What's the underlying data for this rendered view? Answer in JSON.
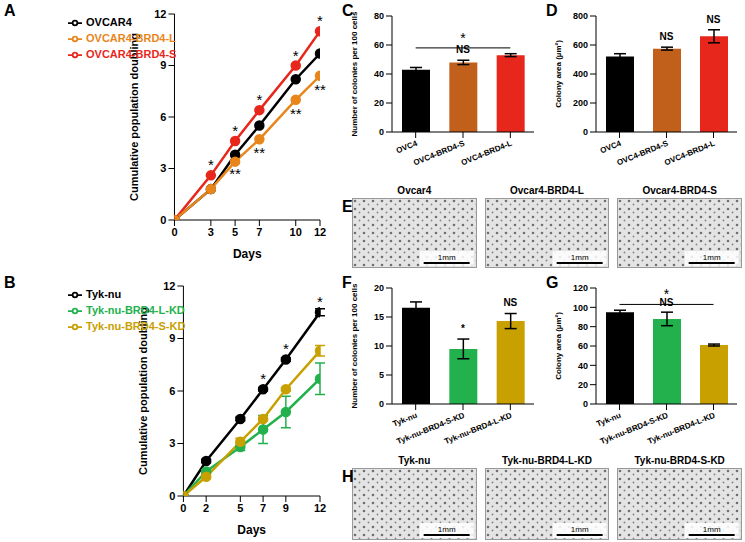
{
  "chart_data": [
    {
      "panel": "A",
      "type": "line",
      "x_label": "Days",
      "y_label": "Cumulative population doubling",
      "x": [
        0,
        3,
        5,
        7,
        10,
        12
      ],
      "xlim": [
        0,
        12
      ],
      "xticks": [
        0,
        3,
        5,
        7,
        10,
        12
      ],
      "ylim": [
        0,
        12
      ],
      "yticks": [
        0,
        3,
        6,
        9,
        12
      ],
      "grid": false,
      "legend": "upper left",
      "marker": "circle",
      "series": [
        {
          "name": "OVCAR4",
          "color": "#000000",
          "values": [
            0,
            1.8,
            3.8,
            5.5,
            8.2,
            9.7
          ]
        },
        {
          "name": "OVCAR4-BRD4-S",
          "color": "#e8271c",
          "values": [
            0,
            2.6,
            4.6,
            6.4,
            9.0,
            11.0
          ]
        },
        {
          "name": "OVCAR4-BRD4-L",
          "color": "#e8861c",
          "values": [
            0,
            1.8,
            3.4,
            4.7,
            7.0,
            8.4
          ]
        }
      ],
      "annotations": [
        {
          "x": 3,
          "y": 3.2,
          "text": "*"
        },
        {
          "x": 5,
          "y": 5.2,
          "text": "*"
        },
        {
          "x": 7,
          "y": 7.0,
          "text": "*"
        },
        {
          "x": 10,
          "y": 9.6,
          "text": "*"
        },
        {
          "x": 12,
          "y": 11.6,
          "text": "*"
        },
        {
          "x": 5,
          "y": 2.7,
          "text": "**"
        },
        {
          "x": 7,
          "y": 3.9,
          "text": "**"
        },
        {
          "x": 10,
          "y": 6.2,
          "text": "**"
        },
        {
          "x": 12,
          "y": 7.6,
          "text": "**"
        }
      ]
    },
    {
      "panel": "B",
      "type": "line",
      "x_label": "Days",
      "y_label": "Cumulative population doubling",
      "x": [
        0,
        2,
        5,
        7,
        9,
        12
      ],
      "xlim": [
        0,
        12
      ],
      "xticks": [
        0,
        2,
        5,
        7,
        9,
        12
      ],
      "ylim": [
        0,
        12
      ],
      "yticks": [
        0,
        3,
        6,
        9,
        12
      ],
      "grid": false,
      "legend": "upper left",
      "marker": "circle",
      "series": [
        {
          "name": "Tyk-nu",
          "color": "#000000",
          "values": [
            0,
            2.0,
            4.4,
            6.1,
            7.8,
            10.5
          ],
          "errors": [
            0,
            0.1,
            0.1,
            0.1,
            0.1,
            0.2
          ]
        },
        {
          "name": "Tyk-nu-BRD4-L-KD",
          "color": "#22b14c",
          "values": [
            0,
            1.4,
            2.8,
            3.8,
            4.8,
            6.7
          ],
          "errors": [
            0,
            0.1,
            0.2,
            0.8,
            0.9,
            0.9
          ]
        },
        {
          "name": "Tyk-nu-BRD4-S-KD",
          "color": "#c8a000",
          "values": [
            0,
            1.1,
            3.1,
            4.4,
            6.1,
            8.3
          ],
          "errors": [
            0,
            0.1,
            0.2,
            0.1,
            0.1,
            0.3
          ]
        }
      ],
      "annotations": [
        {
          "x": 7,
          "y": 6.7,
          "text": "*"
        },
        {
          "x": 9,
          "y": 8.4,
          "text": "*"
        },
        {
          "x": 12,
          "y": 11.1,
          "text": "*"
        }
      ]
    },
    {
      "panel": "C",
      "type": "bar",
      "y_label": "Number of colonies per 100 cells",
      "categories": [
        "OVC4",
        "OVC4-BRD4-S",
        "OVC4-BRD4-L"
      ],
      "values": [
        43,
        48,
        53
      ],
      "errors": [
        1.5,
        1.5,
        1.0
      ],
      "colors": [
        "#000000",
        "#c0601a",
        "#e8271c"
      ],
      "ylim": [
        0,
        80
      ],
      "yticks": [
        0,
        20,
        40,
        60,
        80
      ],
      "grid": false,
      "annotations": [
        {
          "category": "OVC4-BRD4-S",
          "y": 51,
          "text": "NS"
        }
      ],
      "brackets": [
        {
          "from": "OVC4",
          "to": "OVC4-BRD4-L",
          "y": 58,
          "text": "*"
        }
      ]
    },
    {
      "panel": "D",
      "type": "bar",
      "y_label": "Colony area (µm²)",
      "categories": [
        "OVC4",
        "OVC4-BRD4-S",
        "OVC4-BRD4-L"
      ],
      "values": [
        520,
        575,
        660
      ],
      "errors": [
        20,
        10,
        45
      ],
      "colors": [
        "#000000",
        "#c0601a",
        "#e8271c"
      ],
      "ylim": [
        0,
        800
      ],
      "yticks": [
        0,
        200,
        400,
        600,
        800
      ],
      "grid": false,
      "annotations": [
        {
          "category": "OVC4-BRD4-S",
          "y": 600,
          "text": "NS"
        },
        {
          "category": "OVC4-BRD4-L",
          "y": 720,
          "text": "NS"
        }
      ],
      "brackets": []
    },
    {
      "panel": "F",
      "type": "bar",
      "y_label": "Number of colonies per 100 cells",
      "categories": [
        "Tyk-nu",
        "Tyk-nu-BRD4-S-KD",
        "Tyk-nu-BRD4-L-KD"
      ],
      "values": [
        16.6,
        9.5,
        14.3
      ],
      "errors": [
        1.0,
        1.7,
        1.3
      ],
      "colors": [
        "#000000",
        "#22b14c",
        "#c8a000"
      ],
      "ylim": [
        0,
        20
      ],
      "yticks": [
        0,
        5,
        10,
        15,
        20
      ],
      "grid": false,
      "annotations": [
        {
          "category": "Tyk-nu-BRD4-S-KD",
          "y": 11.5,
          "text": "*"
        },
        {
          "category": "Tyk-nu-BRD4-L-KD",
          "y": 16,
          "text": "NS"
        }
      ],
      "brackets": []
    },
    {
      "panel": "G",
      "type": "bar",
      "y_label": "Colony area (µm²)",
      "categories": [
        "Tyk-nu",
        "Tyk-nu-BRD4-S-KD",
        "Tyk-nu-BRD4-L-KD"
      ],
      "values": [
        95,
        88,
        61
      ],
      "errors": [
        2,
        7,
        1
      ],
      "colors": [
        "#000000",
        "#22b14c",
        "#c8a000"
      ],
      "ylim": [
        0,
        120
      ],
      "yticks": [
        0,
        20,
        40,
        60,
        80,
        100,
        120
      ],
      "grid": false,
      "annotations": [
        {
          "category": "Tyk-nu-BRD4-S-KD",
          "y": 96,
          "text": "NS"
        }
      ],
      "brackets": [
        {
          "from": "Tyk-nu",
          "to": "Tyk-nu-BRD4-L-KD",
          "y": 103,
          "text": "*"
        }
      ]
    }
  ],
  "image_panels": [
    {
      "panel": "E",
      "images": [
        {
          "title": "Ovcar4",
          "scale_bar": "1mm"
        },
        {
          "title": "Ovcar4-BRD4-L",
          "scale_bar": "1mm"
        },
        {
          "title": "Ovcar4-BRD4-S",
          "scale_bar": "1mm"
        }
      ]
    },
    {
      "panel": "H",
      "images": [
        {
          "title": "Tyk-nu",
          "scale_bar": "1mm"
        },
        {
          "title": "Tyk-nu-BRD4-L-KD",
          "scale_bar": "1mm"
        },
        {
          "title": "Tyk-nu-BRD4-S-KD",
          "scale_bar": "1mm"
        }
      ]
    }
  ]
}
